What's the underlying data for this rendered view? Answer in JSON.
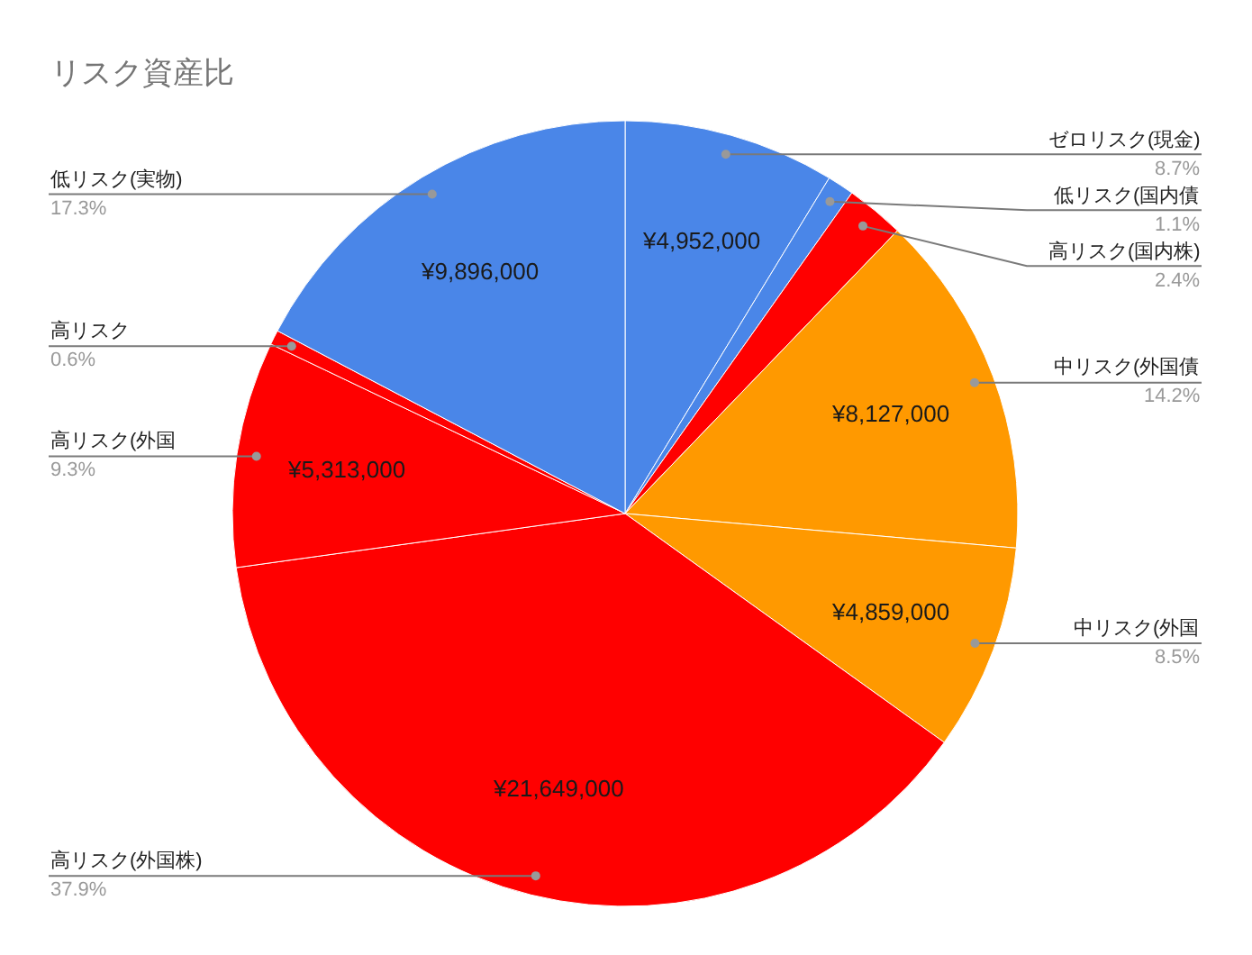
{
  "chart_data": {
    "type": "pie",
    "title": "リスク資産比",
    "categories": [
      "ゼロリスク(現金)",
      "低リスク(国内債",
      "高リスク(国内株)",
      "中リスク(外国債",
      "中リスク(外国",
      "高リスク(外国株)",
      "高リスク(外国",
      "高リスク",
      "低リスク(実物)"
    ],
    "values": [
      8.7,
      1.1,
      2.4,
      14.2,
      8.5,
      37.9,
      9.3,
      0.6,
      17.3
    ],
    "colors": [
      "#4a86e8",
      "#4a86e8",
      "#ff0000",
      "#ff9900",
      "#ff9900",
      "#ff0000",
      "#ff0000",
      "#ff0000",
      "#4a86e8"
    ],
    "value_labels": [
      "8.7%",
      "1.1%",
      "2.4%",
      "14.2%",
      "8.5%",
      "37.9%",
      "9.3%",
      "0.6%",
      "17.3%"
    ],
    "annotations": [
      {
        "text": "¥4,952,000",
        "x": "ゼロリスク(現金)"
      },
      {
        "text": "¥8,127,000",
        "x": "中リスク(外国債"
      },
      {
        "text": "¥4,859,000",
        "x": "中リスク(外国"
      },
      {
        "text": "¥21,649,000",
        "x": "高リスク(外国株)"
      },
      {
        "text": "¥5,313,000",
        "x": "高リスク(外国"
      },
      {
        "text": "¥9,896,000",
        "x": "低リスク(実物)"
      }
    ]
  }
}
